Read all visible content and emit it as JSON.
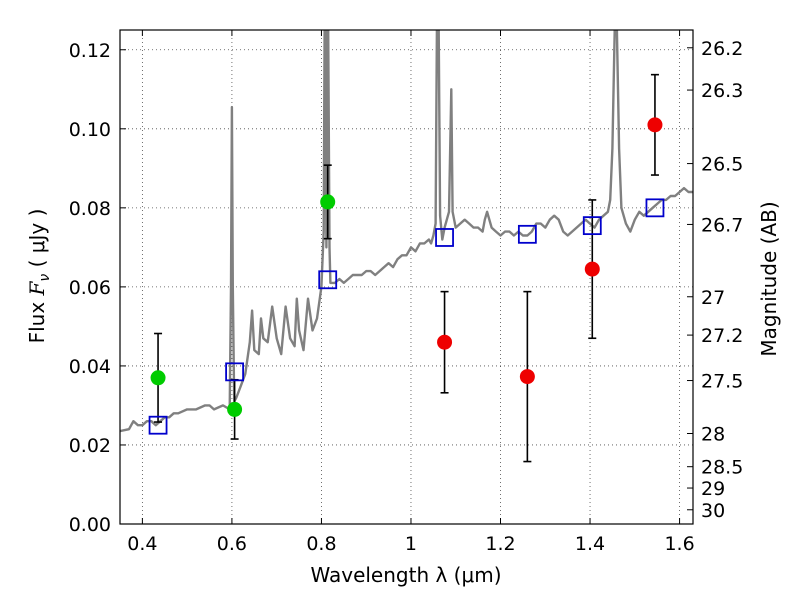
{
  "chart_data": {
    "type": "scatter",
    "xlabel": "Wavelength  λ (μm)",
    "ylabel": "Flux  F_ν  ( μJy )",
    "ylabel_parts": {
      "prefix": "Flux  ",
      "f": "F",
      "nu": "ν",
      "suffix": "  ( μJy )"
    },
    "y2label": "Magnitude (AB)",
    "xlim": [
      0.35,
      1.63
    ],
    "ylim": [
      0.0,
      0.125
    ],
    "grid": true,
    "x_ticks": [
      0.4,
      0.6,
      0.8,
      1.0,
      1.2,
      1.4,
      1.6
    ],
    "x_tick_labels": [
      "0.4",
      "0.6",
      "0.8",
      "1",
      "1.2",
      "1.4",
      "1.6"
    ],
    "y_ticks": [
      0.0,
      0.02,
      0.04,
      0.06,
      0.08,
      0.1,
      0.12
    ],
    "y_tick_labels": [
      "0.00",
      "0.02",
      "0.04",
      "0.06",
      "0.08",
      "0.10",
      "0.12"
    ],
    "y2_ticks": [
      {
        "label": "26.2",
        "flux": 0.1205
      },
      {
        "label": "26.3",
        "flux": 0.1098
      },
      {
        "label": "26.5",
        "flux": 0.0912
      },
      {
        "label": "26.7",
        "flux": 0.0758
      },
      {
        "label": "27",
        "flux": 0.0575
      },
      {
        "label": "27.2",
        "flux": 0.0478
      },
      {
        "label": "27.5",
        "flux": 0.0363
      },
      {
        "label": "28",
        "flux": 0.0229
      },
      {
        "label": "28.5",
        "flux": 0.0145
      },
      {
        "label": "29",
        "flux": 0.0091
      },
      {
        "label": "30",
        "flux": 0.0036
      }
    ],
    "spectrum": {
      "name": "",
      "color": "#808080",
      "points": [
        [
          0.35,
          0.0235
        ],
        [
          0.37,
          0.024
        ],
        [
          0.38,
          0.026
        ],
        [
          0.39,
          0.025
        ],
        [
          0.4,
          0.025
        ],
        [
          0.41,
          0.026
        ],
        [
          0.42,
          0.026
        ],
        [
          0.43,
          0.025
        ],
        [
          0.44,
          0.026
        ],
        [
          0.45,
          0.027
        ],
        [
          0.46,
          0.027
        ],
        [
          0.47,
          0.028
        ],
        [
          0.48,
          0.028
        ],
        [
          0.5,
          0.029
        ],
        [
          0.52,
          0.029
        ],
        [
          0.54,
          0.03
        ],
        [
          0.55,
          0.03
        ],
        [
          0.56,
          0.029
        ],
        [
          0.58,
          0.03
        ],
        [
          0.595,
          0.029
        ],
        [
          0.598,
          0.06
        ],
        [
          0.6,
          0.1055
        ],
        [
          0.602,
          0.06
        ],
        [
          0.605,
          0.031
        ],
        [
          0.61,
          0.032
        ],
        [
          0.62,
          0.035
        ],
        [
          0.63,
          0.038
        ],
        [
          0.64,
          0.046
        ],
        [
          0.645,
          0.054
        ],
        [
          0.65,
          0.044
        ],
        [
          0.66,
          0.043
        ],
        [
          0.665,
          0.052
        ],
        [
          0.67,
          0.047
        ],
        [
          0.68,
          0.046
        ],
        [
          0.69,
          0.055
        ],
        [
          0.7,
          0.047
        ],
        [
          0.71,
          0.043
        ],
        [
          0.72,
          0.055
        ],
        [
          0.73,
          0.047
        ],
        [
          0.74,
          0.045
        ],
        [
          0.745,
          0.057
        ],
        [
          0.75,
          0.049
        ],
        [
          0.76,
          0.044
        ],
        [
          0.77,
          0.057
        ],
        [
          0.78,
          0.049
        ],
        [
          0.79,
          0.052
        ],
        [
          0.8,
          0.06
        ],
        [
          0.805,
          0.074
        ],
        [
          0.807,
          0.125
        ],
        [
          0.809,
          0.125
        ],
        [
          0.811,
          0.07
        ],
        [
          0.813,
          0.125
        ],
        [
          0.815,
          0.125
        ],
        [
          0.818,
          0.07
        ],
        [
          0.82,
          0.061
        ],
        [
          0.83,
          0.061
        ],
        [
          0.84,
          0.062
        ],
        [
          0.85,
          0.061
        ],
        [
          0.86,
          0.062
        ],
        [
          0.87,
          0.063
        ],
        [
          0.88,
          0.063
        ],
        [
          0.89,
          0.063
        ],
        [
          0.9,
          0.064
        ],
        [
          0.91,
          0.064
        ],
        [
          0.92,
          0.063
        ],
        [
          0.93,
          0.064
        ],
        [
          0.94,
          0.065
        ],
        [
          0.95,
          0.066
        ],
        [
          0.96,
          0.065
        ],
        [
          0.97,
          0.067
        ],
        [
          0.98,
          0.068
        ],
        [
          0.99,
          0.068
        ],
        [
          1.0,
          0.07
        ],
        [
          1.01,
          0.069
        ],
        [
          1.02,
          0.071
        ],
        [
          1.03,
          0.071
        ],
        [
          1.04,
          0.072
        ],
        [
          1.045,
          0.071
        ],
        [
          1.05,
          0.073
        ],
        [
          1.055,
          0.076
        ],
        [
          1.058,
          0.125
        ],
        [
          1.062,
          0.125
        ],
        [
          1.065,
          0.078
        ],
        [
          1.07,
          0.072
        ],
        [
          1.075,
          0.075
        ],
        [
          1.08,
          0.077
        ],
        [
          1.085,
          0.079
        ],
        [
          1.09,
          0.11
        ],
        [
          1.093,
          0.079
        ],
        [
          1.1,
          0.075
        ],
        [
          1.11,
          0.076
        ],
        [
          1.12,
          0.077
        ],
        [
          1.13,
          0.076
        ],
        [
          1.14,
          0.075
        ],
        [
          1.15,
          0.075
        ],
        [
          1.16,
          0.074
        ],
        [
          1.165,
          0.077
        ],
        [
          1.17,
          0.079
        ],
        [
          1.18,
          0.075
        ],
        [
          1.19,
          0.074
        ],
        [
          1.2,
          0.073
        ],
        [
          1.21,
          0.074
        ],
        [
          1.22,
          0.074
        ],
        [
          1.23,
          0.073
        ],
        [
          1.24,
          0.074
        ],
        [
          1.25,
          0.073
        ],
        [
          1.26,
          0.073
        ],
        [
          1.27,
          0.074
        ],
        [
          1.28,
          0.076
        ],
        [
          1.29,
          0.076
        ],
        [
          1.3,
          0.075
        ],
        [
          1.31,
          0.077
        ],
        [
          1.32,
          0.078
        ],
        [
          1.33,
          0.077
        ],
        [
          1.34,
          0.074
        ],
        [
          1.35,
          0.073
        ],
        [
          1.36,
          0.074
        ],
        [
          1.37,
          0.075
        ],
        [
          1.38,
          0.076
        ],
        [
          1.39,
          0.077
        ],
        [
          1.4,
          0.076
        ],
        [
          1.41,
          0.075
        ],
        [
          1.42,
          0.077
        ],
        [
          1.43,
          0.078
        ],
        [
          1.44,
          0.079
        ],
        [
          1.445,
          0.082
        ],
        [
          1.45,
          0.095
        ],
        [
          1.455,
          0.125
        ],
        [
          1.46,
          0.125
        ],
        [
          1.465,
          0.095
        ],
        [
          1.47,
          0.08
        ],
        [
          1.48,
          0.076
        ],
        [
          1.49,
          0.074
        ],
        [
          1.5,
          0.077
        ],
        [
          1.51,
          0.079
        ],
        [
          1.52,
          0.078
        ],
        [
          1.53,
          0.079
        ],
        [
          1.54,
          0.08
        ],
        [
          1.55,
          0.081
        ],
        [
          1.56,
          0.082
        ],
        [
          1.57,
          0.082
        ],
        [
          1.58,
          0.083
        ],
        [
          1.59,
          0.083
        ],
        [
          1.6,
          0.084
        ],
        [
          1.61,
          0.085
        ],
        [
          1.62,
          0.084
        ],
        [
          1.63,
          0.084
        ]
      ]
    },
    "series": [
      {
        "name": "",
        "color": "#00cc00",
        "marker": "circle",
        "points": [
          {
            "x": 0.435,
            "y": 0.037,
            "err": 0.0112
          },
          {
            "x": 0.606,
            "y": 0.029,
            "err": 0.0075
          },
          {
            "x": 0.814,
            "y": 0.0815,
            "err": 0.0093
          }
        ]
      },
      {
        "name": "",
        "color": "#ee0000",
        "marker": "circle",
        "points": [
          {
            "x": 1.075,
            "y": 0.046,
            "err": 0.0128
          },
          {
            "x": 1.26,
            "y": 0.0373,
            "err": 0.0215
          },
          {
            "x": 1.405,
            "y": 0.0645,
            "err": 0.0175
          },
          {
            "x": 1.545,
            "y": 0.101,
            "err": 0.0127
          }
        ]
      },
      {
        "name": "",
        "color": "#0000cc",
        "marker": "open-square",
        "points": [
          {
            "x": 0.435,
            "y": 0.025
          },
          {
            "x": 0.606,
            "y": 0.0385
          },
          {
            "x": 0.814,
            "y": 0.0618
          },
          {
            "x": 1.075,
            "y": 0.0725
          },
          {
            "x": 1.26,
            "y": 0.0733
          },
          {
            "x": 1.405,
            "y": 0.0755
          },
          {
            "x": 1.545,
            "y": 0.08
          }
        ]
      }
    ]
  }
}
